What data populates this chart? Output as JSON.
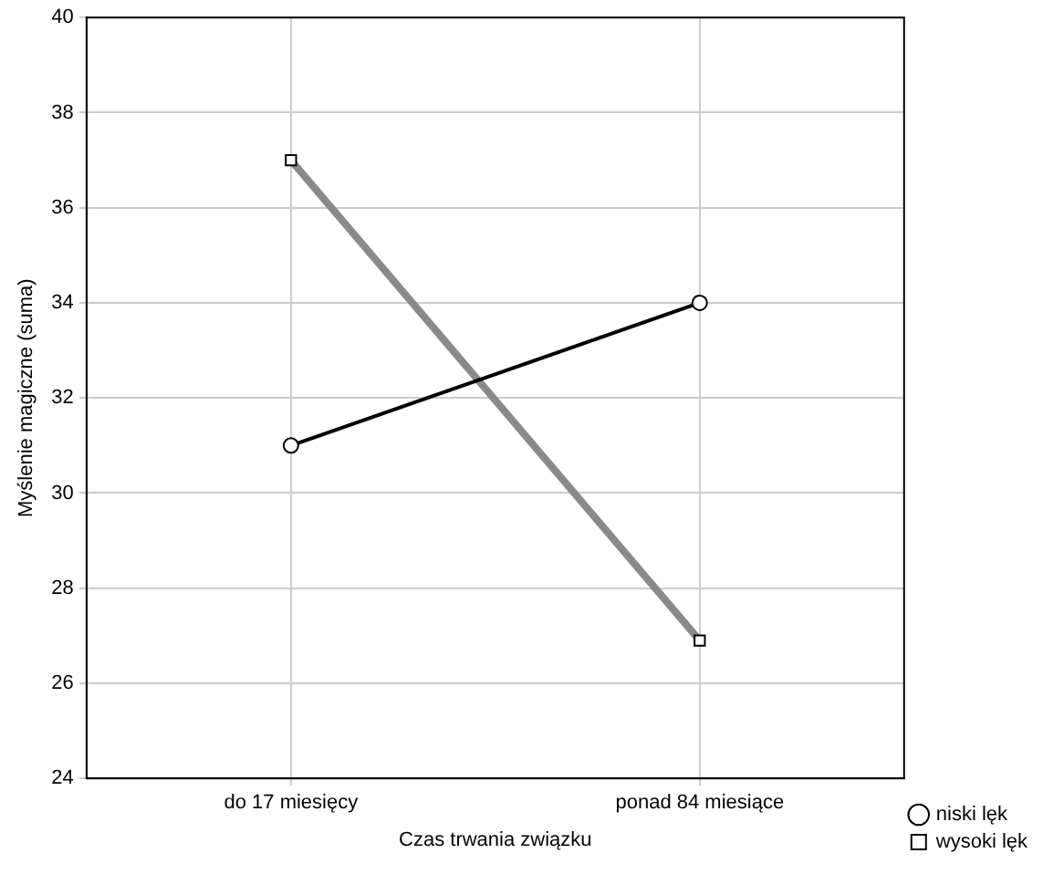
{
  "chart_data": {
    "type": "line",
    "xlabel": "Czas trwania związku",
    "ylabel": "Myślenie magiczne (suma)",
    "categories": [
      "do 17 miesięcy",
      "ponad 84 miesiące"
    ],
    "series": [
      {
        "name": "niski lęk",
        "color": "#000000",
        "values": [
          31,
          34
        ],
        "marker": "circle"
      },
      {
        "name": "wysoki lęk",
        "color": "#8a8a8a",
        "values": [
          37,
          26.9
        ],
        "marker": "square"
      }
    ],
    "ylim": [
      24,
      40
    ],
    "yticks": [
      24,
      26,
      28,
      30,
      32,
      34,
      36,
      38,
      40
    ],
    "grid": true,
    "legend": "bottom right",
    "line_style": "solid"
  }
}
